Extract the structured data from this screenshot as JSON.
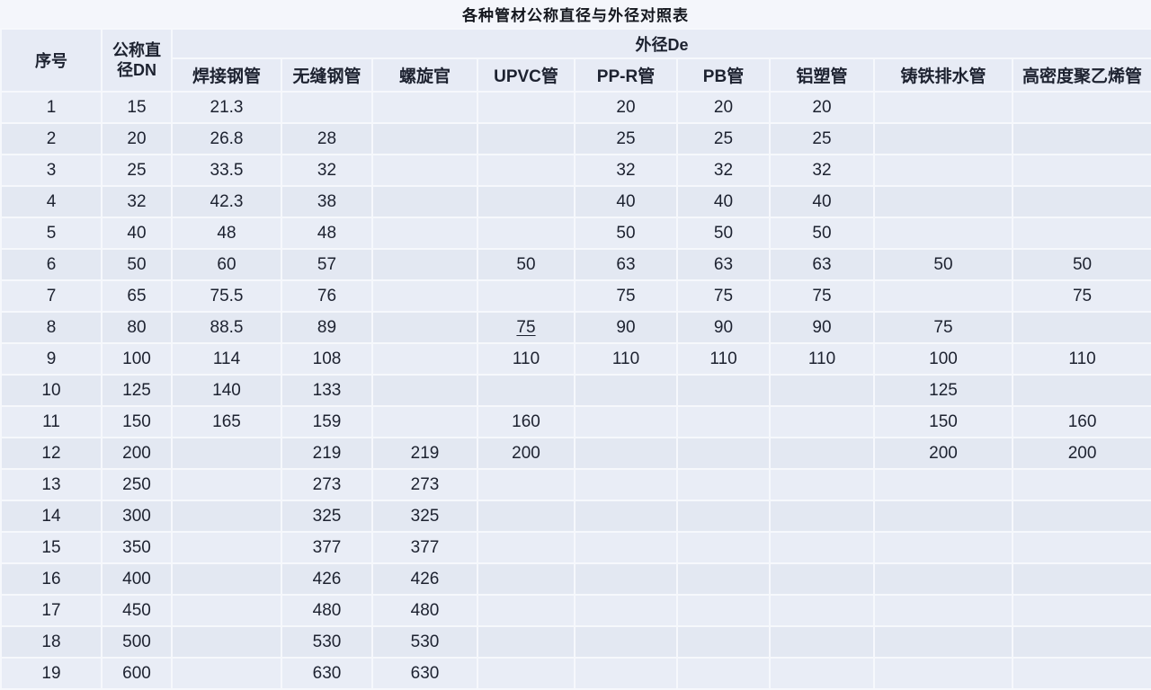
{
  "title": "各种管材公称直径与外径对照表",
  "chart_data": {
    "type": "table",
    "title": "各种管材公称直径与外径对照表",
    "group_header": "外径De",
    "group_header_spans_columns": [
      "焊接钢管",
      "无缝钢管",
      "螺旋官",
      "UPVC管",
      "PP-R管",
      "PB管",
      "铝塑管",
      "铸铁排水管",
      "高密度聚乙烯管"
    ],
    "columns": [
      "序号",
      "公称直径DN",
      "焊接钢管",
      "无缝钢管",
      "螺旋官",
      "UPVC管",
      "PP-R管",
      "PB管",
      "铝塑管",
      "铸铁排水管",
      "高密度聚乙烯管"
    ],
    "rows": [
      [
        "1",
        "15",
        "21.3",
        "",
        "",
        "",
        "20",
        "20",
        "20",
        "",
        ""
      ],
      [
        "2",
        "20",
        "26.8",
        "28",
        "",
        "",
        "25",
        "25",
        "25",
        "",
        ""
      ],
      [
        "3",
        "25",
        "33.5",
        "32",
        "",
        "",
        "32",
        "32",
        "32",
        "",
        ""
      ],
      [
        "4",
        "32",
        "42.3",
        "38",
        "",
        "",
        "40",
        "40",
        "40",
        "",
        ""
      ],
      [
        "5",
        "40",
        "48",
        "48",
        "",
        "",
        "50",
        "50",
        "50",
        "",
        ""
      ],
      [
        "6",
        "50",
        "60",
        "57",
        "",
        "50",
        "63",
        "63",
        "63",
        "50",
        "50"
      ],
      [
        "7",
        "65",
        "75.5",
        "76",
        "",
        "",
        "75",
        "75",
        "75",
        "",
        "75"
      ],
      [
        "8",
        "80",
        "88.5",
        "89",
        "",
        "75",
        "90",
        "90",
        "90",
        "75",
        ""
      ],
      [
        "9",
        "100",
        "114",
        "108",
        "",
        "110",
        "110",
        "110",
        "110",
        "100",
        "110"
      ],
      [
        "10",
        "125",
        "140",
        "133",
        "",
        "",
        "",
        "",
        "",
        "125",
        ""
      ],
      [
        "11",
        "150",
        "165",
        "159",
        "",
        "160",
        "",
        "",
        "",
        "150",
        "160"
      ],
      [
        "12",
        "200",
        "",
        "219",
        "219",
        "200",
        "",
        "",
        "",
        "200",
        "200"
      ],
      [
        "13",
        "250",
        "",
        "273",
        "273",
        "",
        "",
        "",
        "",
        "",
        ""
      ],
      [
        "14",
        "300",
        "",
        "325",
        "325",
        "",
        "",
        "",
        "",
        "",
        ""
      ],
      [
        "15",
        "350",
        "",
        "377",
        "377",
        "",
        "",
        "",
        "",
        "",
        ""
      ],
      [
        "16",
        "400",
        "",
        "426",
        "426",
        "",
        "",
        "",
        "",
        "",
        ""
      ],
      [
        "17",
        "450",
        "",
        "480",
        "480",
        "",
        "",
        "",
        "",
        "",
        ""
      ],
      [
        "18",
        "500",
        "",
        "530",
        "530",
        "",
        "",
        "",
        "",
        "",
        ""
      ],
      [
        "19",
        "600",
        "",
        "630",
        "630",
        "",
        "",
        "",
        "",
        "",
        ""
      ]
    ],
    "underlined_cell": {
      "row_index": 7,
      "col_index": 5,
      "column": "UPVC管",
      "value": "75"
    },
    "layout": {
      "grid": true,
      "row_striping": true,
      "legend_position": "none"
    }
  },
  "colors": {
    "page_bg": "#f4f6fb",
    "header_bg": "#e7ebf5",
    "row_odd": "#e9edf6",
    "row_even": "#e3e8f2",
    "grid": "#f6f8fc",
    "text": "#1d2230",
    "title_text": "#15181f"
  }
}
